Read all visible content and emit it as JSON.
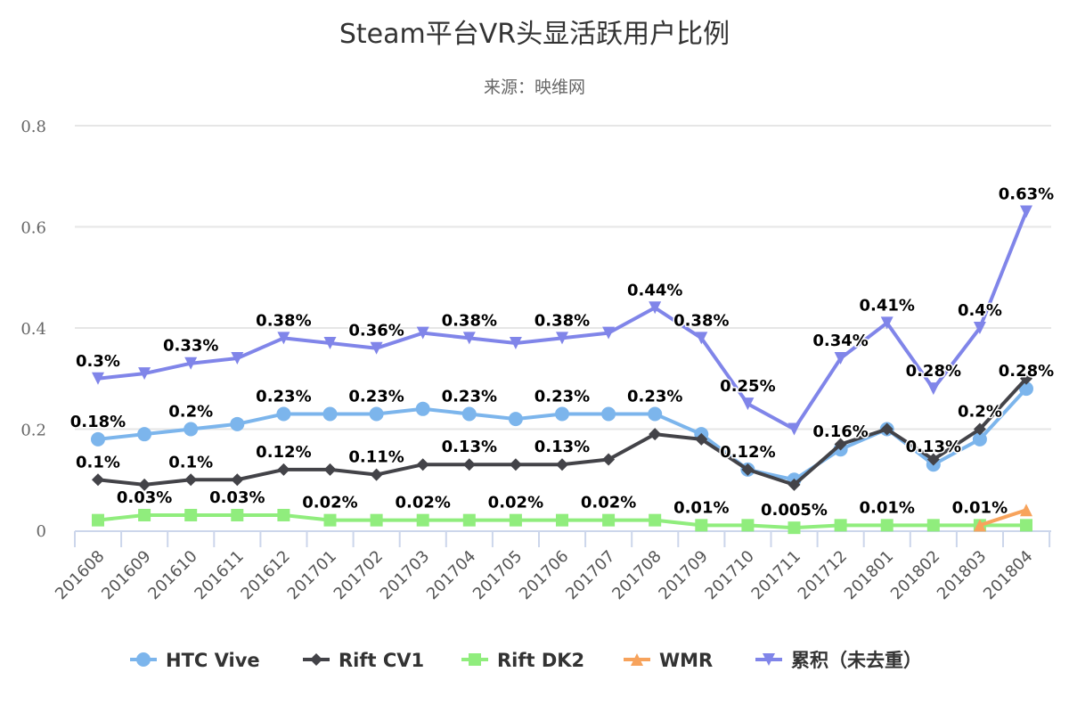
{
  "chart_data": {
    "type": "line",
    "title": "Steam平台VR头显活跃用户比例",
    "subtitle": "来源：映维网",
    "xlabel": "",
    "ylabel": "",
    "ylim": [
      0,
      0.8
    ],
    "yticks": [
      "0",
      "0.2",
      "0.4",
      "0.6",
      "0.8"
    ],
    "ytick_values": [
      0,
      0.2,
      0.4,
      0.6,
      0.8
    ],
    "grid": true,
    "legend_position": "bottom",
    "categories": [
      "201608",
      "201609",
      "201610",
      "201611",
      "201612",
      "201701",
      "201702",
      "201703",
      "201704",
      "201705",
      "201706",
      "201707",
      "201708",
      "201709",
      "201710",
      "201711",
      "201712",
      "201801",
      "201802",
      "201803",
      "201804"
    ],
    "series": [
      {
        "name": "HTC Vive",
        "color": "#7cb5ec",
        "marker": "circle",
        "values": [
          0.18,
          0.19,
          0.2,
          0.21,
          0.23,
          0.23,
          0.23,
          0.24,
          0.23,
          0.22,
          0.23,
          0.23,
          0.23,
          0.19,
          0.12,
          0.1,
          0.16,
          0.2,
          0.13,
          0.18,
          0.28
        ],
        "labels": {
          "0": "0.18%",
          "2": "0.2%",
          "4": "0.23%",
          "6": "0.23%",
          "8": "0.23%",
          "10": "0.23%",
          "12": "0.23%",
          "14": "0.12%",
          "16": "0.16%",
          "18": "0.13%",
          "20": "0.28%"
        }
      },
      {
        "name": "Rift CV1",
        "color": "#434348",
        "marker": "diamond",
        "values": [
          0.1,
          0.09,
          0.1,
          0.1,
          0.12,
          0.12,
          0.11,
          0.13,
          0.13,
          0.13,
          0.13,
          0.14,
          0.19,
          0.18,
          0.12,
          0.09,
          0.17,
          0.2,
          0.14,
          0.2,
          0.3
        ],
        "labels": {
          "0": "0.1%",
          "2": "0.1%",
          "4": "0.12%",
          "6": "0.11%",
          "8": "0.13%",
          "10": "0.13%",
          "19": "0.2%"
        }
      },
      {
        "name": "Rift DK2",
        "color": "#90ed7d",
        "marker": "square",
        "values": [
          0.02,
          0.03,
          0.03,
          0.03,
          0.03,
          0.02,
          0.02,
          0.02,
          0.02,
          0.02,
          0.02,
          0.02,
          0.02,
          0.01,
          0.01,
          0.005,
          0.01,
          0.01,
          0.01,
          0.01,
          0.01
        ],
        "labels": {
          "1": "0.03%",
          "3": "0.03%",
          "5": "0.02%",
          "7": "0.02%",
          "9": "0.02%",
          "11": "0.02%",
          "13": "0.01%",
          "15": "0.005%",
          "17": "0.01%",
          "19": "0.01%"
        }
      },
      {
        "name": "WMR",
        "color": "#f7a35c",
        "marker": "triangle",
        "values": [
          null,
          null,
          null,
          null,
          null,
          null,
          null,
          null,
          null,
          null,
          null,
          null,
          null,
          null,
          null,
          null,
          null,
          null,
          null,
          0.01,
          0.04
        ],
        "labels": {}
      },
      {
        "name": "累积（未去重）",
        "color": "#8085e9",
        "marker": "triangle-down",
        "values": [
          0.3,
          0.31,
          0.33,
          0.34,
          0.38,
          0.37,
          0.36,
          0.39,
          0.38,
          0.37,
          0.38,
          0.39,
          0.44,
          0.38,
          0.25,
          0.2,
          0.34,
          0.41,
          0.28,
          0.4,
          0.63
        ],
        "labels": {
          "0": "0.3%",
          "2": "0.33%",
          "4": "0.38%",
          "6": "0.36%",
          "8": "0.38%",
          "10": "0.38%",
          "12": "0.44%",
          "13": "0.38%",
          "14": "0.25%",
          "16": "0.34%",
          "17": "0.41%",
          "18": "0.28%",
          "19": "0.4%",
          "20": "0.63%"
        }
      }
    ]
  }
}
